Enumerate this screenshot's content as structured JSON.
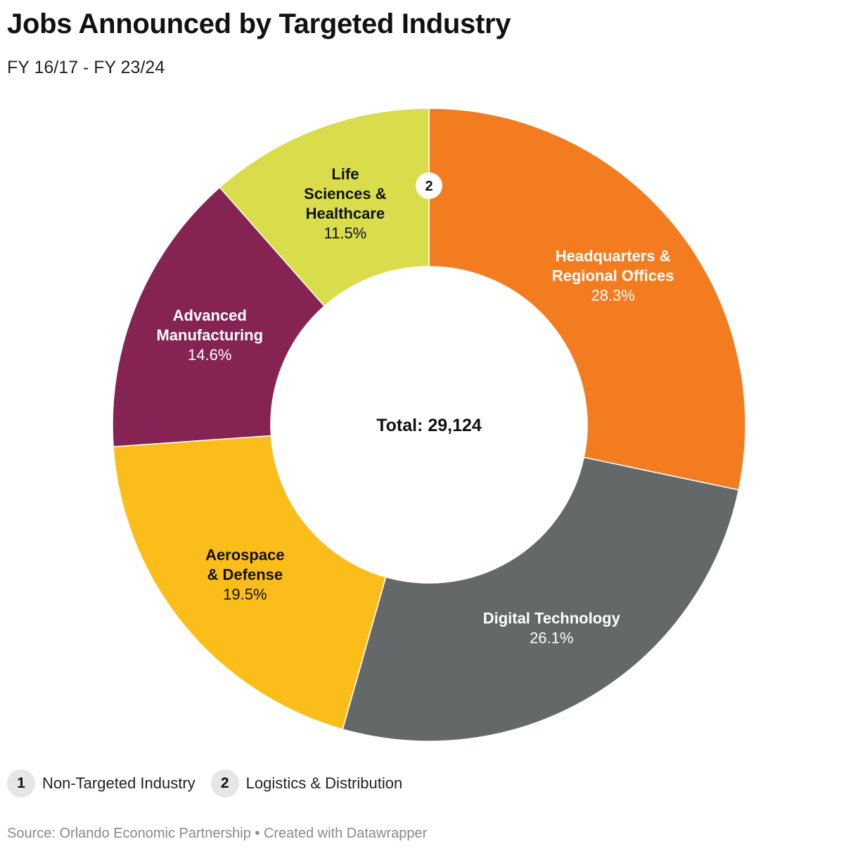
{
  "header": {
    "title": "Jobs Announced by Targeted Industry",
    "subtitle": "FY 16/17 - FY 23/24"
  },
  "chart_data": {
    "type": "pie",
    "variant": "donut",
    "center_label": "Total: 29,124",
    "total": 29124,
    "slices": [
      {
        "label_lines": [
          "Headquarters &",
          "Regional Offices"
        ],
        "value": 28.3,
        "value_label": "28.3%",
        "color": "#f47c20",
        "text_color": "#ffffff"
      },
      {
        "label_lines": [
          "Digital Technology"
        ],
        "value": 26.1,
        "value_label": "26.1%",
        "color": "#646868",
        "text_color": "#ffffff"
      },
      {
        "label_lines": [
          "Aerospace",
          "& Defense"
        ],
        "value": 19.5,
        "value_label": "19.5%",
        "color": "#fbbd19",
        "text_color": "#111111"
      },
      {
        "label_lines": [
          "Advanced",
          "Manufacturing"
        ],
        "value": 14.6,
        "value_label": "14.6%",
        "color": "#852353",
        "text_color": "#ffffff"
      },
      {
        "label_lines": [
          "Life",
          "Sciences &",
          "Healthcare"
        ],
        "value": 11.5,
        "value_label": "11.5%",
        "color": "#d9dd4c",
        "text_color": "#111111"
      }
    ],
    "marker": {
      "text": "2",
      "refers_to": "Logistics & Distribution"
    }
  },
  "legend": {
    "items": [
      {
        "badge": "1",
        "label": "Non-Targeted Industry"
      },
      {
        "badge": "2",
        "label": "Logistics & Distribution"
      }
    ]
  },
  "footer": {
    "source": "Source: Orlando Economic Partnership • Created with Datawrapper"
  }
}
